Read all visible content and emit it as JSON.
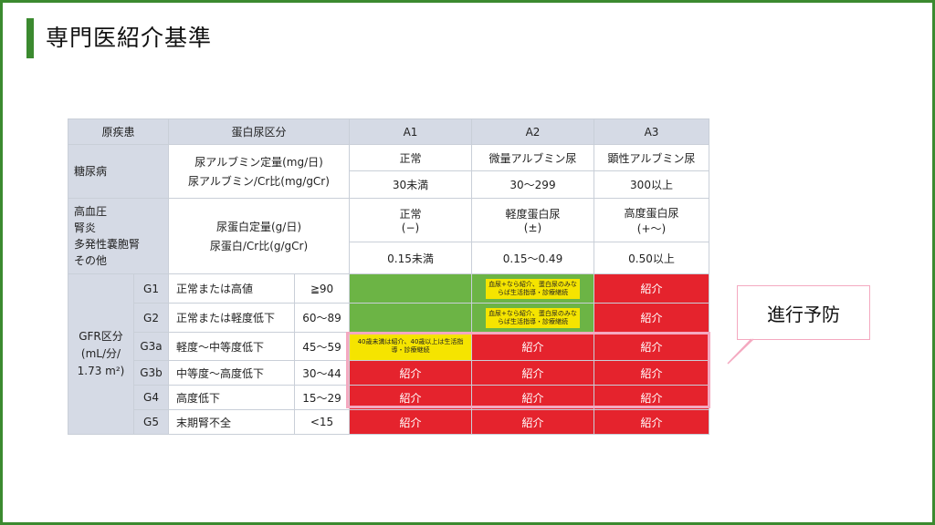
{
  "title": "専門医紹介基準",
  "header": {
    "col1": "原疾患",
    "col2": "蛋白尿区分",
    "a1": "A1",
    "a2": "A2",
    "a3": "A3"
  },
  "diabetes": {
    "disease": "糖尿病",
    "measure_line1": "尿アルブミン定量(mg/日)",
    "measure_line2": "尿アルブミン/Cr比(mg/gCr)",
    "a1_label": "正常",
    "a2_label": "微量アルブミン尿",
    "a3_label": "顕性アルブミン尿",
    "a1_range": "30未満",
    "a2_range": "30〜299",
    "a3_range": "300以上"
  },
  "other": {
    "diseases": [
      "高血圧",
      "腎炎",
      "多発性嚢胞腎",
      "その他"
    ],
    "measure_line1": "尿蛋白定量(g/日)",
    "measure_line2": "尿蛋白/Cr比(g/gCr)",
    "a1_label_line1": "正常",
    "a1_label_line2": "(−)",
    "a2_label_line1": "軽度蛋白尿",
    "a2_label_line2": "(±)",
    "a3_label_line1": "高度蛋白尿",
    "a3_label_line2": "(+〜)",
    "a1_range": "0.15未満",
    "a2_range": "0.15〜0.49",
    "a3_range": "0.50以上"
  },
  "gfr": {
    "label_line1": "GFR区分",
    "label_line2": "(mL/分/",
    "label_line3": "1.73 m²)",
    "rows": [
      {
        "grade": "G1",
        "desc": "正常または高値",
        "range": "≧90",
        "a1": "",
        "a2": "血尿+なら紹介、蛋白尿のみならば生活指導・診療継続",
        "a3": "紹介"
      },
      {
        "grade": "G2",
        "desc": "正常または軽度低下",
        "range": "60〜89",
        "a1": "",
        "a2": "血尿+なら紹介、蛋白尿のみならば生活指導・診療継続",
        "a3": "紹介"
      },
      {
        "grade": "G3a",
        "desc": "軽度〜中等度低下",
        "range": "45〜59",
        "a1": "40歳未満は紹介、40歳以上は生活指導・診療継続",
        "a2": "紹介",
        "a3": "紹介"
      },
      {
        "grade": "G3b",
        "desc": "中等度〜高度低下",
        "range": "30〜44",
        "a1": "紹介",
        "a2": "紹介",
        "a3": "紹介"
      },
      {
        "grade": "G4",
        "desc": "高度低下",
        "range": "15〜29",
        "a1": "紹介",
        "a2": "紹介",
        "a3": "紹介"
      },
      {
        "grade": "G5",
        "desc": "末期腎不全",
        "range": "<15",
        "a1": "紹介",
        "a2": "紹介",
        "a3": "紹介"
      }
    ]
  },
  "callout": "進行予防",
  "colors": {
    "frame": "#3b8a2f",
    "header_bg": "#d5dae5",
    "green": "#6cb445",
    "yellow": "#f5e400",
    "red": "#e5232d",
    "highlight": "#f4a9c0"
  }
}
